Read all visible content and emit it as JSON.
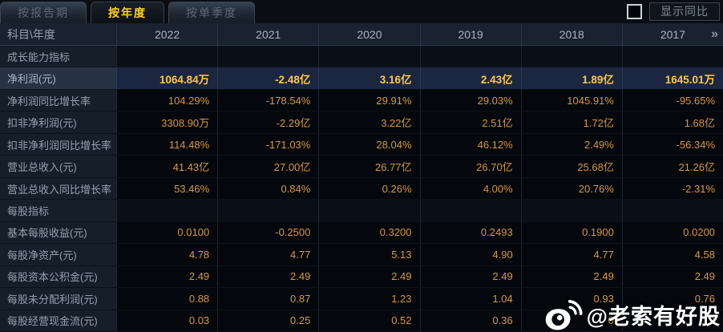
{
  "tabs": [
    {
      "label": "按报告期",
      "active": false
    },
    {
      "label": "按年度",
      "active": true
    },
    {
      "label": "按单季度",
      "active": false
    }
  ],
  "controls": {
    "show_yoy_label": "显示同比",
    "checkbox_checked": false
  },
  "table": {
    "corner_label": "科目\\年度",
    "years": [
      "2022",
      "2021",
      "2020",
      "2019",
      "2018",
      "2017"
    ],
    "more_indicator": "»",
    "rows": [
      {
        "type": "section",
        "label": "成长能力指标",
        "values": [
          "",
          "",
          "",
          "",
          "",
          ""
        ]
      },
      {
        "type": "highlight",
        "label": "净利润(元)",
        "values": [
          "1064.84万",
          "-2.48亿",
          "3.16亿",
          "2.43亿",
          "1.89亿",
          "1645.01万"
        ]
      },
      {
        "type": "normal",
        "label": "净利润同比增长率",
        "values": [
          "104.29%",
          "-178.54%",
          "29.91%",
          "29.03%",
          "1045.91%",
          "-95.65%"
        ]
      },
      {
        "type": "normal",
        "label": "扣非净利润(元)",
        "values": [
          "3308.90万",
          "-2.29亿",
          "3.22亿",
          "2.51亿",
          "1.72亿",
          "1.68亿"
        ]
      },
      {
        "type": "normal",
        "label": "扣非净利润同比增长率",
        "values": [
          "114.48%",
          "-171.03%",
          "28.04%",
          "46.12%",
          "2.49%",
          "-56.34%"
        ]
      },
      {
        "type": "normal",
        "label": "营业总收入(元)",
        "values": [
          "41.43亿",
          "27.00亿",
          "26.77亿",
          "26.70亿",
          "25.68亿",
          "21.26亿"
        ]
      },
      {
        "type": "normal",
        "label": "营业总收入同比增长率",
        "values": [
          "53.46%",
          "0.84%",
          "0.26%",
          "4.00%",
          "20.76%",
          "-2.31%"
        ]
      },
      {
        "type": "section",
        "label": "每股指标",
        "values": [
          "",
          "",
          "",
          "",
          "",
          ""
        ]
      },
      {
        "type": "normal",
        "label": "基本每股收益(元)",
        "values": [
          "0.0100",
          "-0.2500",
          "0.3200",
          "0.2493",
          "0.1900",
          "0.0200"
        ]
      },
      {
        "type": "normal",
        "label": "每股净资产(元)",
        "values": [
          "4.78",
          "4.77",
          "5.13",
          "4.90",
          "4.77",
          "4.58"
        ]
      },
      {
        "type": "normal",
        "label": "每股资本公积金(元)",
        "values": [
          "2.49",
          "2.49",
          "2.49",
          "2.49",
          "2.49",
          "2.49"
        ]
      },
      {
        "type": "normal",
        "label": "每股未分配利润(元)",
        "values": [
          "0.88",
          "0.87",
          "1.23",
          "1.04",
          "0.93",
          "0.76"
        ]
      },
      {
        "type": "normal",
        "label": "每股经营现金流(元)",
        "values": [
          "0.03",
          "0.25",
          "0.52",
          "0.36",
          "0",
          "9"
        ]
      }
    ]
  },
  "watermark": {
    "icon": "weibo-icon",
    "handle": "@老索有好股"
  },
  "colors": {
    "background": "#05080d",
    "active_tab_text": "#ffd21e",
    "value_amber": "#d8993b",
    "highlight_gold": "#ffc844",
    "highlight_row_bg": "#1b2640",
    "label_cell_bg": "#161e2a",
    "watermark_text": "#ffffff"
  }
}
